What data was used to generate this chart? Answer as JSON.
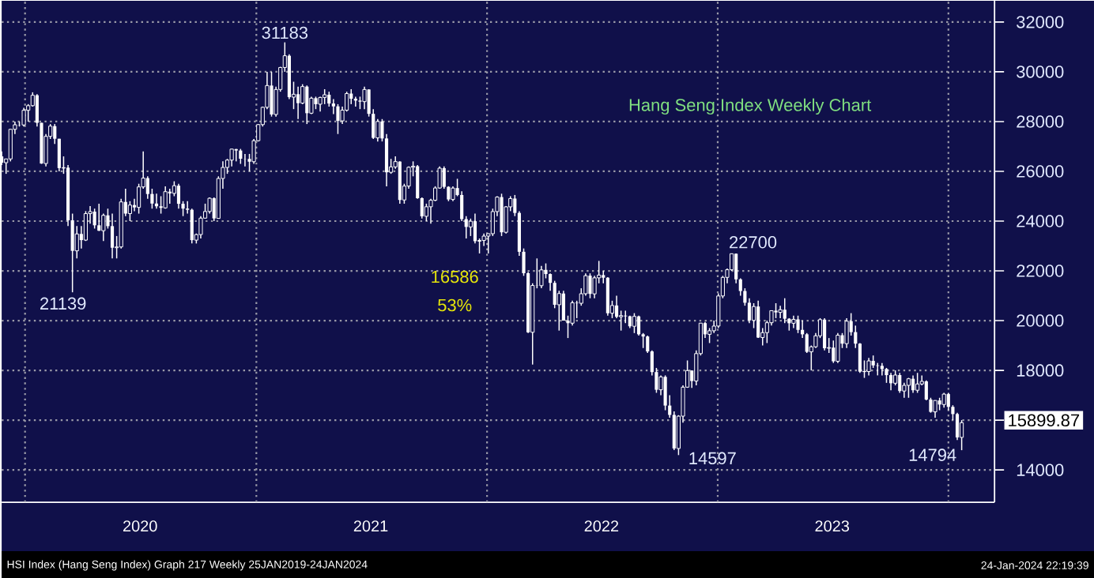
{
  "chart_data": {
    "type": "candlestick",
    "title": "Hang Seng Index Weekly Chart",
    "color": "#ffffff",
    "grid": true,
    "xlim": [
      "2019-11-25",
      "2024-03-14"
    ],
    "xticks": [
      {
        "value": "2020-01-01",
        "label": null
      },
      {
        "value": "2020-07-01",
        "label": "2020"
      },
      {
        "value": "2021-01-01",
        "label": null
      },
      {
        "value": "2021-07-01",
        "label": "2021"
      },
      {
        "value": "2022-01-01",
        "label": null
      },
      {
        "value": "2022-07-01",
        "label": "2022"
      },
      {
        "value": "2023-01-01",
        "label": null
      },
      {
        "value": "2023-07-01",
        "label": "2023"
      },
      {
        "value": "2024-01-01",
        "label": null
      }
    ],
    "ylim": [
      12700,
      32850
    ],
    "yticks": [
      14000,
      {
        "value": 16000,
        "label": null
      },
      18000,
      20000,
      22000,
      24000,
      26000,
      28000,
      30000,
      32000
    ],
    "annotations": [
      {
        "text": "31183",
        "x": "2021-02-15",
        "y": 31183
      },
      {
        "text": "21139",
        "x": "2020-03-16",
        "y": 21139
      },
      {
        "text": "22700",
        "x": "2023-01-23",
        "y": 22700
      },
      {
        "text": "14597",
        "x": "2022-10-31",
        "y": 14597
      },
      {
        "text": "14794",
        "x": "2024-01-22",
        "y": 14794
      },
      "15899.87",
      "16586",
      "53%",
      "HSI Index (Hang Seng Index) Graph 217 Weekly 25JAN2019-24JAN2024",
      "24-Jan-2024 22:19:39"
    ],
    "x": [
      "2019-11-25",
      "2019-12-02",
      "2019-12-09",
      "2019-12-16",
      "2019-12-23",
      "2019-12-30",
      "2020-01-06",
      "2020-01-13",
      "2020-01-20",
      "2020-01-27",
      "2020-02-03",
      "2020-02-10",
      "2020-02-17",
      "2020-02-24",
      "2020-03-02",
      "2020-03-09",
      "2020-03-16",
      "2020-03-23",
      "2020-03-30",
      "2020-04-06",
      "2020-04-13",
      "2020-04-20",
      "2020-04-27",
      "2020-05-04",
      "2020-05-11",
      "2020-05-18",
      "2020-05-25",
      "2020-06-01",
      "2020-06-08",
      "2020-06-15",
      "2020-06-22",
      "2020-06-29",
      "2020-07-06",
      "2020-07-13",
      "2020-07-20",
      "2020-07-27",
      "2020-08-03",
      "2020-08-10",
      "2020-08-17",
      "2020-08-24",
      "2020-08-31",
      "2020-09-07",
      "2020-09-14",
      "2020-09-21",
      "2020-09-28",
      "2020-10-05",
      "2020-10-12",
      "2020-10-19",
      "2020-10-26",
      "2020-11-02",
      "2020-11-09",
      "2020-11-16",
      "2020-11-23",
      "2020-11-30",
      "2020-12-07",
      "2020-12-14",
      "2020-12-21",
      "2020-12-28",
      "2021-01-04",
      "2021-01-11",
      "2021-01-18",
      "2021-01-25",
      "2021-02-01",
      "2021-02-08",
      "2021-02-15",
      "2021-02-22",
      "2021-03-01",
      "2021-03-08",
      "2021-03-15",
      "2021-03-22",
      "2021-03-29",
      "2021-04-05",
      "2021-04-12",
      "2021-04-19",
      "2021-04-26",
      "2021-05-03",
      "2021-05-10",
      "2021-05-17",
      "2021-05-24",
      "2021-05-31",
      "2021-06-07",
      "2021-06-14",
      "2021-06-21",
      "2021-06-28",
      "2021-07-05",
      "2021-07-12",
      "2021-07-19",
      "2021-07-26",
      "2021-08-02",
      "2021-08-09",
      "2021-08-16",
      "2021-08-23",
      "2021-08-30",
      "2021-09-06",
      "2021-09-13",
      "2021-09-20",
      "2021-09-27",
      "2021-10-04",
      "2021-10-11",
      "2021-10-18",
      "2021-10-25",
      "2021-11-01",
      "2021-11-08",
      "2021-11-15",
      "2021-11-22",
      "2021-11-29",
      "2021-12-06",
      "2021-12-13",
      "2021-12-20",
      "2021-12-27",
      "2022-01-03",
      "2022-01-10",
      "2022-01-17",
      "2022-01-24",
      "2022-01-31",
      "2022-02-07",
      "2022-02-14",
      "2022-02-21",
      "2022-02-28",
      "2022-03-07",
      "2022-03-14",
      "2022-03-21",
      "2022-03-28",
      "2022-04-04",
      "2022-04-11",
      "2022-04-18",
      "2022-04-25",
      "2022-05-02",
      "2022-05-09",
      "2022-05-16",
      "2022-05-23",
      "2022-05-30",
      "2022-06-06",
      "2022-06-13",
      "2022-06-20",
      "2022-06-27",
      "2022-07-04",
      "2022-07-11",
      "2022-07-18",
      "2022-07-25",
      "2022-08-01",
      "2022-08-08",
      "2022-08-15",
      "2022-08-22",
      "2022-08-29",
      "2022-09-05",
      "2022-09-12",
      "2022-09-19",
      "2022-09-26",
      "2022-10-03",
      "2022-10-10",
      "2022-10-17",
      "2022-10-24",
      "2022-10-31",
      "2022-11-07",
      "2022-11-14",
      "2022-11-21",
      "2022-11-28",
      "2022-12-05",
      "2022-12-12",
      "2022-12-19",
      "2022-12-26",
      "2023-01-02",
      "2023-01-09",
      "2023-01-16",
      "2023-01-23",
      "2023-01-30",
      "2023-02-06",
      "2023-02-13",
      "2023-02-20",
      "2023-02-27",
      "2023-03-06",
      "2023-03-13",
      "2023-03-20",
      "2023-03-27",
      "2023-04-03",
      "2023-04-10",
      "2023-04-17",
      "2023-04-24",
      "2023-05-01",
      "2023-05-08",
      "2023-05-15",
      "2023-05-22",
      "2023-05-29",
      "2023-06-05",
      "2023-06-12",
      "2023-06-19",
      "2023-06-26",
      "2023-07-03",
      "2023-07-10",
      "2023-07-17",
      "2023-07-24",
      "2023-07-31",
      "2023-08-07",
      "2023-08-14",
      "2023-08-21",
      "2023-08-28",
      "2023-09-04",
      "2023-09-11",
      "2023-09-18",
      "2023-09-25",
      "2023-10-02",
      "2023-10-09",
      "2023-10-16",
      "2023-10-23",
      "2023-10-30",
      "2023-11-06",
      "2023-11-13",
      "2023-11-20",
      "2023-11-27",
      "2023-12-04",
      "2023-12-11",
      "2023-12-18",
      "2023-12-25",
      "2024-01-01",
      "2024-01-08",
      "2024-01-15",
      "2024-01-22"
    ],
    "ohlc": [
      [
        26600,
        26800,
        26250,
        26346
      ],
      [
        26346,
        26500,
        25900,
        26498
      ],
      [
        26498,
        27700,
        26400,
        27688
      ],
      [
        27688,
        28000,
        27500,
        27871
      ],
      [
        27871,
        28000,
        27800,
        27864
      ],
      [
        27864,
        28550,
        27800,
        28452
      ],
      [
        28452,
        28700,
        28000,
        28638
      ],
      [
        28638,
        29175,
        28600,
        29056
      ],
      [
        29056,
        29100,
        27800,
        27950
      ],
      [
        27950,
        27950,
        26300,
        26313
      ],
      [
        26313,
        27500,
        26200,
        27404
      ],
      [
        27404,
        27900,
        27300,
        27816
      ],
      [
        27816,
        27900,
        27100,
        27309
      ],
      [
        27309,
        27309,
        26000,
        26130
      ],
      [
        26130,
        26600,
        25900,
        26147
      ],
      [
        26147,
        26250,
        23800,
        24033
      ],
      [
        24033,
        24300,
        21139,
        22805
      ],
      [
        22805,
        23800,
        22500,
        23484
      ],
      [
        23484,
        23800,
        22900,
        23236
      ],
      [
        23236,
        24400,
        23200,
        24300
      ],
      [
        24300,
        24600,
        23900,
        24380
      ],
      [
        24380,
        24500,
        23700,
        23831
      ],
      [
        23831,
        24700,
        23600,
        23614
      ],
      [
        23614,
        24300,
        23200,
        24230
      ],
      [
        24230,
        24500,
        23700,
        23797
      ],
      [
        23797,
        24300,
        22500,
        22930
      ],
      [
        22930,
        23400,
        22500,
        22961
      ],
      [
        22961,
        24900,
        22900,
        24770
      ],
      [
        24770,
        25300,
        24200,
        24301
      ],
      [
        24301,
        24800,
        24000,
        24644
      ],
      [
        24644,
        24900,
        24400,
        24550
      ],
      [
        24550,
        25500,
        24300,
        25373
      ],
      [
        25373,
        26800,
        25300,
        25727
      ],
      [
        25727,
        25800,
        24900,
        25089
      ],
      [
        25089,
        25300,
        24500,
        24705
      ],
      [
        24705,
        25100,
        24500,
        24595
      ],
      [
        24595,
        25000,
        24300,
        24531
      ],
      [
        24531,
        25400,
        24500,
        25183
      ],
      [
        25183,
        25300,
        24700,
        25113
      ],
      [
        25113,
        25600,
        25000,
        25422
      ],
      [
        25422,
        25500,
        24500,
        24695
      ],
      [
        24695,
        24800,
        24200,
        24503
      ],
      [
        24503,
        24800,
        24300,
        24455
      ],
      [
        24455,
        24500,
        23100,
        23235
      ],
      [
        23235,
        23500,
        23100,
        23459
      ],
      [
        23459,
        24200,
        23300,
        24119
      ],
      [
        24119,
        24700,
        24100,
        24386
      ],
      [
        24386,
        24950,
        24300,
        24918
      ],
      [
        24918,
        24950,
        24000,
        24107
      ],
      [
        24107,
        25800,
        24100,
        25712
      ],
      [
        25712,
        26400,
        25300,
        26156
      ],
      [
        26156,
        26500,
        25900,
        26451
      ],
      [
        26451,
        26900,
        26200,
        26894
      ],
      [
        26894,
        26900,
        26400,
        26836
      ],
      [
        26836,
        26900,
        26300,
        26506
      ],
      [
        26506,
        26700,
        26200,
        26498
      ],
      [
        26498,
        26700,
        26000,
        26387
      ],
      [
        26387,
        27300,
        26300,
        27231
      ],
      [
        27231,
        27900,
        27200,
        27878
      ],
      [
        27878,
        28600,
        27800,
        28573
      ],
      [
        28573,
        30000,
        28500,
        29447
      ],
      [
        29447,
        30000,
        28200,
        28284
      ],
      [
        28284,
        29400,
        28200,
        29289
      ],
      [
        29289,
        30200,
        29200,
        30173
      ],
      [
        30173,
        31183,
        30000,
        30644
      ],
      [
        30644,
        30700,
        28900,
        28980
      ],
      [
        28980,
        29600,
        28500,
        29098
      ],
      [
        29098,
        29400,
        28100,
        28740
      ],
      [
        28740,
        29500,
        28700,
        29405
      ],
      [
        29405,
        29450,
        27900,
        28336
      ],
      [
        28336,
        29000,
        28300,
        28939
      ],
      [
        28939,
        29000,
        28500,
        28698
      ],
      [
        28698,
        29000,
        28400,
        28969
      ],
      [
        28969,
        29300,
        28700,
        29078
      ],
      [
        29078,
        29200,
        28600,
        28725
      ],
      [
        28725,
        28900,
        28300,
        28610
      ],
      [
        28610,
        28700,
        27500,
        28028
      ],
      [
        28028,
        28600,
        27900,
        28458
      ],
      [
        28458,
        29200,
        28400,
        29124
      ],
      [
        29124,
        29300,
        28700,
        28918
      ],
      [
        28918,
        29000,
        28600,
        28842
      ],
      [
        28842,
        29000,
        28500,
        28801
      ],
      [
        28801,
        29400,
        28500,
        29288
      ],
      [
        29288,
        29300,
        28200,
        28310
      ],
      [
        28310,
        28500,
        27300,
        27344
      ],
      [
        27344,
        28100,
        27200,
        28004
      ],
      [
        28004,
        28100,
        27200,
        27321
      ],
      [
        27321,
        27500,
        25400,
        25961
      ],
      [
        25961,
        26500,
        25900,
        26179
      ],
      [
        26179,
        26600,
        26100,
        26391
      ],
      [
        26391,
        26400,
        24700,
        24849
      ],
      [
        24849,
        25500,
        24700,
        25407
      ],
      [
        25407,
        26200,
        25300,
        26163
      ],
      [
        26163,
        26400,
        25800,
        26205
      ],
      [
        26205,
        26250,
        24900,
        24920
      ],
      [
        24920,
        24950,
        24100,
        24192
      ],
      [
        24192,
        24700,
        24000,
        24576
      ],
      [
        24576,
        24900,
        23900,
        24837
      ],
      [
        24837,
        25400,
        24800,
        25330
      ],
      [
        25330,
        26200,
        25300,
        26126
      ],
      [
        26126,
        26200,
        25300,
        25377
      ],
      [
        25377,
        25400,
        24800,
        24870
      ],
      [
        24870,
        25400,
        24800,
        25327
      ],
      [
        25327,
        25700,
        25000,
        25049
      ],
      [
        25049,
        25200,
        24000,
        24080
      ],
      [
        24080,
        24200,
        23300,
        23766
      ],
      [
        23766,
        24100,
        23400,
        23995
      ],
      [
        23995,
        24300,
        23100,
        23192
      ],
      [
        23192,
        23300,
        22700,
        23223
      ],
      [
        23223,
        23500,
        23000,
        23397
      ],
      [
        23397,
        23500,
        22700,
        23493
      ],
      [
        23493,
        24500,
        23400,
        24383
      ],
      [
        24383,
        25000,
        24200,
        24965
      ],
      [
        24965,
        25100,
        23400,
        23550
      ],
      [
        23550,
        24600,
        23500,
        24573
      ],
      [
        24573,
        25000,
        24400,
        24906
      ],
      [
        24906,
        25050,
        24200,
        24328
      ],
      [
        24328,
        24400,
        22600,
        22767
      ],
      [
        22767,
        22900,
        21800,
        21905
      ],
      [
        21905,
        21950,
        19500,
        19531
      ],
      [
        19531,
        21500,
        18235,
        21412
      ],
      [
        21412,
        22500,
        21300,
        21404
      ],
      [
        21404,
        22200,
        21300,
        22039
      ],
      [
        22039,
        22300,
        21700,
        21872
      ],
      [
        21872,
        21900,
        21200,
        21518
      ],
      [
        21518,
        21600,
        20500,
        20638
      ],
      [
        20638,
        21200,
        19600,
        21089
      ],
      [
        21089,
        21200,
        20000,
        20001
      ],
      [
        20001,
        20200,
        19300,
        19898
      ],
      [
        19898,
        20800,
        19800,
        20717
      ],
      [
        20717,
        20800,
        20100,
        20697
      ],
      [
        20697,
        21300,
        20600,
        21082
      ],
      [
        21082,
        21900,
        21000,
        21806
      ],
      [
        21806,
        21900,
        20900,
        21075
      ],
      [
        21075,
        21800,
        20900,
        21719
      ],
      [
        21719,
        22400,
        21500,
        21830
      ],
      [
        21830,
        22000,
        21500,
        21725
      ],
      [
        21725,
        21750,
        20200,
        20297
      ],
      [
        20297,
        20800,
        20100,
        20609
      ],
      [
        20609,
        21000,
        20100,
        20156
      ],
      [
        20156,
        20400,
        19600,
        20202
      ],
      [
        20202,
        20400,
        19900,
        20175
      ],
      [
        20175,
        20200,
        19700,
        19773
      ],
      [
        19773,
        20300,
        19500,
        20170
      ],
      [
        20170,
        20200,
        19400,
        19452
      ],
      [
        19452,
        19500,
        18900,
        19362
      ],
      [
        19362,
        19400,
        18700,
        18762
      ],
      [
        18762,
        18800,
        17800,
        17933
      ],
      [
        17933,
        18100,
        17100,
        17222
      ],
      [
        17222,
        17800,
        17000,
        17740
      ],
      [
        17740,
        17800,
        16400,
        16587
      ],
      [
        16587,
        17000,
        16100,
        16211
      ],
      [
        16211,
        16350,
        14800,
        14863
      ],
      [
        14863,
        16200,
        14597,
        16161
      ],
      [
        16161,
        17400,
        15900,
        17326
      ],
      [
        17326,
        18400,
        17300,
        17993
      ],
      [
        17993,
        18000,
        17300,
        17573
      ],
      [
        17573,
        18800,
        17400,
        18675
      ],
      [
        18675,
        19900,
        18600,
        19900
      ],
      [
        19900,
        19950,
        19300,
        19450
      ],
      [
        19450,
        19700,
        19100,
        19593
      ],
      [
        19593,
        20000,
        19500,
        19781
      ],
      [
        19781,
        21100,
        19700,
        20991
      ],
      [
        20991,
        21800,
        20900,
        21738
      ],
      [
        21738,
        22100,
        21500,
        22045
      ],
      [
        22045,
        22700,
        22000,
        22689
      ],
      [
        22689,
        22700,
        21500,
        21660
      ],
      [
        21660,
        21700,
        21000,
        21190
      ],
      [
        21190,
        21300,
        20600,
        20719
      ],
      [
        20719,
        20900,
        19900,
        20010
      ],
      [
        20010,
        20700,
        19700,
        20567
      ],
      [
        20567,
        20800,
        19300,
        19320
      ],
      [
        19320,
        19700,
        19000,
        19518
      ],
      [
        19518,
        20000,
        19100,
        19916
      ],
      [
        19916,
        20400,
        19800,
        20400
      ],
      [
        20400,
        20700,
        20100,
        20331
      ],
      [
        20331,
        20600,
        20100,
        20439
      ],
      [
        20439,
        20900,
        19900,
        20076
      ],
      [
        20076,
        20100,
        19600,
        19895
      ],
      [
        19895,
        20200,
        19700,
        20050
      ],
      [
        20050,
        20200,
        19500,
        19628
      ],
      [
        19628,
        20000,
        19300,
        19450
      ],
      [
        19450,
        19500,
        18700,
        18746
      ],
      [
        18746,
        19000,
        18000,
        18949
      ],
      [
        18949,
        19500,
        18900,
        19390
      ],
      [
        19390,
        20100,
        19300,
        20040
      ],
      [
        20040,
        20100,
        18800,
        18890
      ],
      [
        18890,
        19300,
        18700,
        18916
      ],
      [
        18916,
        19200,
        18300,
        18366
      ],
      [
        18366,
        19500,
        18300,
        19414
      ],
      [
        19414,
        19500,
        18900,
        19075
      ],
      [
        19075,
        20100,
        18900,
        19979
      ],
      [
        19979,
        20300,
        19400,
        19539
      ],
      [
        19539,
        19800,
        18900,
        19075
      ],
      [
        19075,
        19100,
        17900,
        17950
      ],
      [
        17950,
        18400,
        17700,
        17956
      ],
      [
        17956,
        18500,
        17800,
        18382
      ],
      [
        18382,
        18600,
        18100,
        18202
      ],
      [
        18202,
        18300,
        17800,
        18182
      ],
      [
        18182,
        18300,
        17800,
        18057
      ],
      [
        18057,
        18100,
        17500,
        17810
      ],
      [
        17810,
        17900,
        17200,
        17485
      ],
      [
        17485,
        18000,
        17400,
        17813
      ],
      [
        17813,
        17900,
        17100,
        17172
      ],
      [
        17172,
        17500,
        16900,
        17399
      ],
      [
        17399,
        17700,
        16900,
        17664
      ],
      [
        17664,
        17800,
        17100,
        17203
      ],
      [
        17203,
        17900,
        17100,
        17455
      ],
      [
        17455,
        17800,
        17400,
        17559
      ],
      [
        17559,
        17600,
        16800,
        16830
      ],
      [
        16830,
        16900,
        16300,
        16334
      ],
      [
        16334,
        16800,
        16100,
        16792
      ],
      [
        16792,
        16900,
        16400,
        16629
      ],
      [
        16629,
        17100,
        16500,
        17047
      ],
      [
        17047,
        17100,
        16400,
        16535
      ],
      [
        16535,
        16600,
        16000,
        16245
      ],
      [
        16245,
        16300,
        15200,
        15308
      ],
      [
        15308,
        16000,
        14794,
        15900
      ]
    ]
  }
}
